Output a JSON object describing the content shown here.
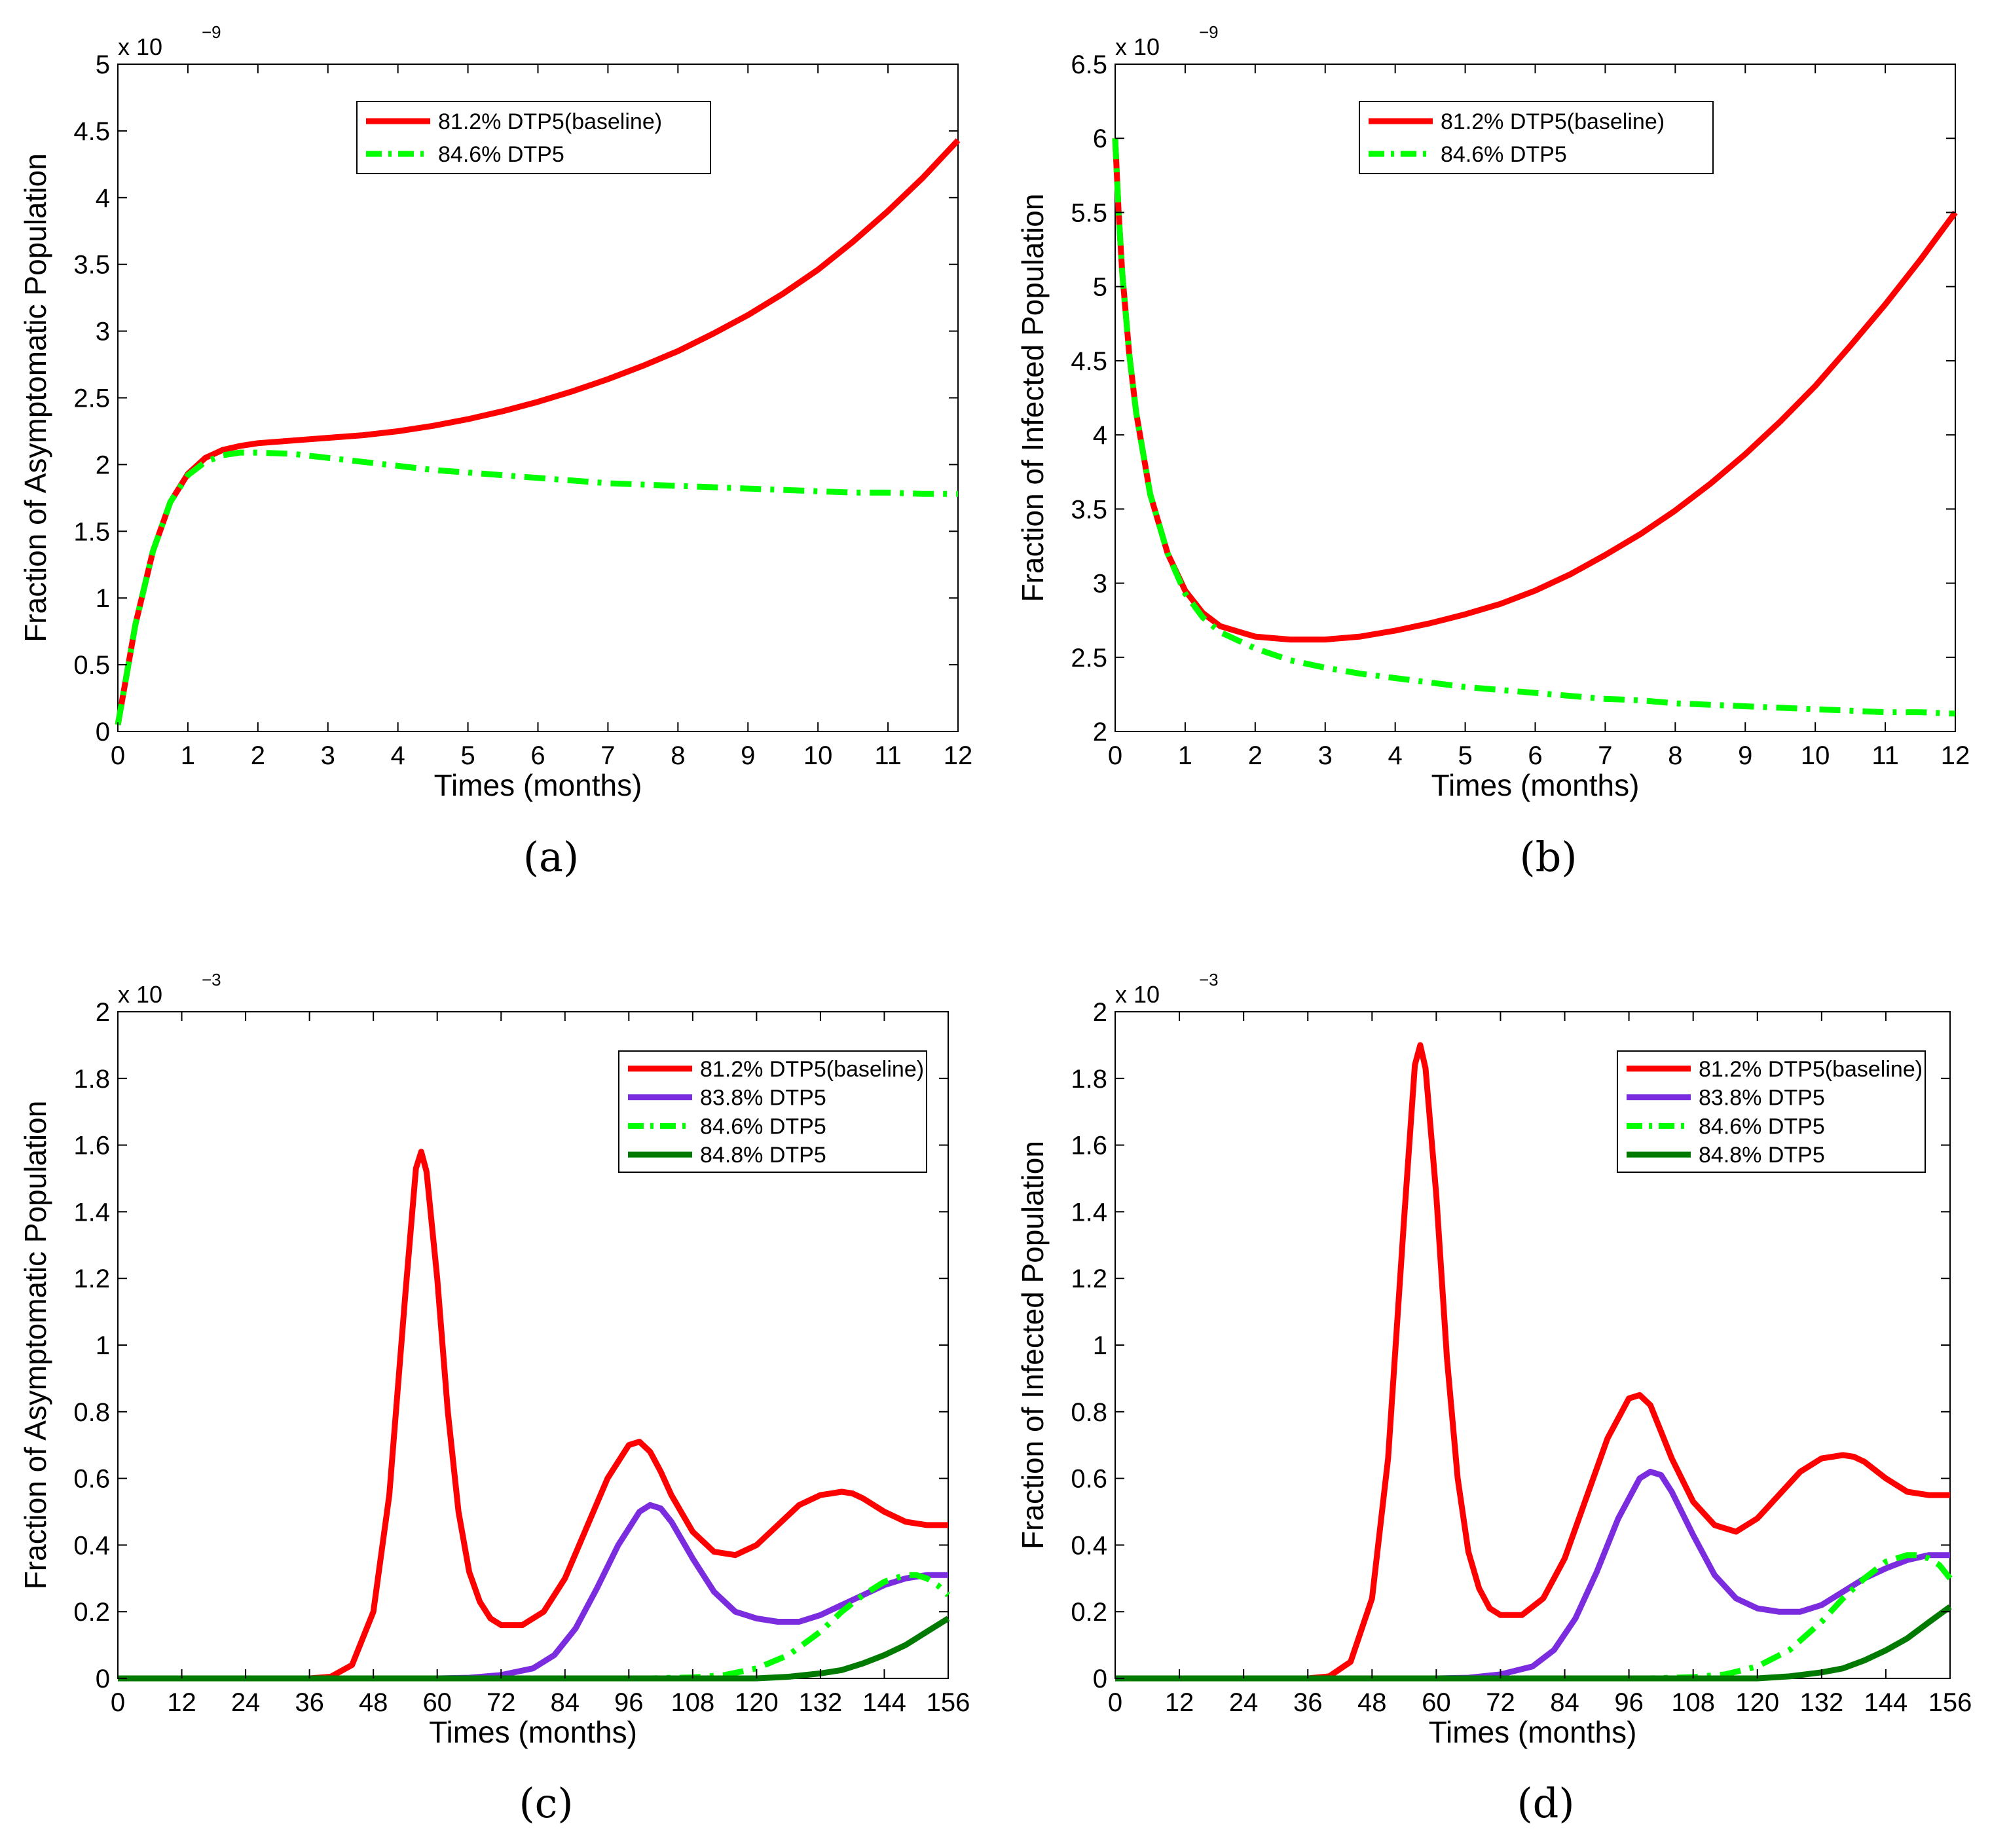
{
  "chart_data": [
    {
      "id": "a",
      "type": "line",
      "caption": "(a)",
      "xlabel": "Times (months)",
      "ylabel": "Fraction of Asymptomatic Population",
      "y_multiplier": "x 10",
      "y_exponent": "−9",
      "xlim": [
        0,
        12
      ],
      "ylim": [
        0,
        5
      ],
      "xticks": [
        0,
        1,
        2,
        3,
        4,
        5,
        6,
        7,
        8,
        9,
        10,
        11,
        12
      ],
      "xtick_labels": [
        "0",
        "1",
        "2",
        "3",
        "4",
        "5",
        "6",
        "7",
        "8",
        "9",
        "10",
        "11",
        "12"
      ],
      "yticks": [
        0,
        0.5,
        1,
        1.5,
        2,
        2.5,
        3,
        3.5,
        4,
        4.5,
        5
      ],
      "ytick_labels": [
        "0",
        "0.5",
        "1",
        "1.5",
        "2",
        "2.5",
        "3",
        "3.5",
        "4",
        "4.5",
        "5"
      ],
      "legend": "top-center",
      "series": [
        {
          "name": "81.2% DTP5(baseline)",
          "color": "#ff0000",
          "style": "solid",
          "x": [
            0,
            0.1,
            0.25,
            0.5,
            0.75,
            1,
            1.25,
            1.5,
            1.75,
            2,
            2.5,
            3,
            3.5,
            4,
            4.5,
            5,
            5.5,
            6,
            6.5,
            7,
            7.5,
            8,
            8.5,
            9,
            9.5,
            10,
            10.5,
            11,
            11.5,
            12
          ],
          "y": [
            0.05,
            0.35,
            0.8,
            1.35,
            1.72,
            1.93,
            2.05,
            2.11,
            2.14,
            2.16,
            2.18,
            2.2,
            2.22,
            2.25,
            2.29,
            2.34,
            2.4,
            2.47,
            2.55,
            2.64,
            2.74,
            2.85,
            2.98,
            3.12,
            3.28,
            3.46,
            3.67,
            3.9,
            4.15,
            4.43
          ]
        },
        {
          "name": "84.6% DTP5",
          "color": "#00ff00",
          "style": "dashdot",
          "x": [
            0,
            0.1,
            0.25,
            0.5,
            0.75,
            1,
            1.25,
            1.5,
            1.75,
            2,
            2.5,
            3,
            3.5,
            4,
            4.5,
            5,
            5.5,
            6,
            6.5,
            7,
            7.5,
            8,
            8.5,
            9,
            9.5,
            10,
            10.5,
            11,
            11.5,
            12
          ],
          "y": [
            0.05,
            0.35,
            0.8,
            1.35,
            1.72,
            1.92,
            2.02,
            2.07,
            2.09,
            2.09,
            2.08,
            2.05,
            2.02,
            1.99,
            1.96,
            1.94,
            1.92,
            1.9,
            1.88,
            1.86,
            1.85,
            1.84,
            1.83,
            1.82,
            1.81,
            1.8,
            1.79,
            1.79,
            1.78,
            1.78
          ]
        }
      ]
    },
    {
      "id": "b",
      "type": "line",
      "caption": "(b)",
      "xlabel": "Times (months)",
      "ylabel": "Fraction of Infected Population",
      "y_multiplier": "x 10",
      "y_exponent": "−9",
      "xlim": [
        0,
        12
      ],
      "ylim": [
        2,
        6.5
      ],
      "xticks": [
        0,
        1,
        2,
        3,
        4,
        5,
        6,
        7,
        8,
        9,
        10,
        11,
        12
      ],
      "xtick_labels": [
        "0",
        "1",
        "2",
        "3",
        "4",
        "5",
        "6",
        "7",
        "8",
        "9",
        "10",
        "11",
        "12"
      ],
      "yticks": [
        2,
        2.5,
        3,
        3.5,
        4,
        4.5,
        5,
        5.5,
        6,
        6.5
      ],
      "ytick_labels": [
        "2",
        "2.5",
        "3",
        "3.5",
        "4",
        "4.5",
        "5",
        "5.5",
        "6",
        "6.5"
      ],
      "legend": "top-center",
      "series": [
        {
          "name": "81.2% DTP5(baseline)",
          "color": "#ff0000",
          "style": "solid",
          "x": [
            0,
            0.05,
            0.1,
            0.2,
            0.3,
            0.5,
            0.75,
            1,
            1.25,
            1.5,
            2,
            2.5,
            3,
            3.5,
            4,
            4.5,
            5,
            5.5,
            6,
            6.5,
            7,
            7.5,
            8,
            8.5,
            9,
            9.5,
            10,
            10.5,
            11,
            11.5,
            12
          ],
          "y": [
            6,
            5.5,
            5.1,
            4.55,
            4.15,
            3.6,
            3.2,
            2.95,
            2.8,
            2.71,
            2.64,
            2.62,
            2.62,
            2.64,
            2.68,
            2.73,
            2.79,
            2.86,
            2.95,
            3.06,
            3.19,
            3.33,
            3.49,
            3.67,
            3.87,
            4.09,
            4.33,
            4.6,
            4.88,
            5.18,
            5.5
          ]
        },
        {
          "name": "84.6% DTP5",
          "color": "#00ff00",
          "style": "dashdot",
          "x": [
            0,
            0.05,
            0.1,
            0.2,
            0.3,
            0.5,
            0.75,
            1,
            1.25,
            1.5,
            2,
            2.5,
            3,
            3.5,
            4,
            4.5,
            5,
            5.5,
            6,
            6.5,
            7,
            7.5,
            8,
            8.5,
            9,
            9.5,
            10,
            10.5,
            11,
            11.5,
            12
          ],
          "y": [
            6,
            5.5,
            5.1,
            4.55,
            4.15,
            3.6,
            3.2,
            2.93,
            2.77,
            2.67,
            2.56,
            2.48,
            2.43,
            2.39,
            2.36,
            2.33,
            2.3,
            2.28,
            2.26,
            2.24,
            2.22,
            2.21,
            2.19,
            2.18,
            2.17,
            2.16,
            2.15,
            2.14,
            2.13,
            2.13,
            2.12
          ]
        }
      ]
    },
    {
      "id": "c",
      "type": "line",
      "caption": "(c)",
      "xlabel": "Times (months)",
      "ylabel": "Fraction of Asymptomatic Population",
      "y_multiplier": "x 10",
      "y_exponent": "−3",
      "xlim": [
        0,
        156
      ],
      "ylim": [
        0,
        2
      ],
      "xticks": [
        0,
        12,
        24,
        36,
        48,
        60,
        72,
        84,
        96,
        108,
        120,
        132,
        144,
        156
      ],
      "xtick_labels": [
        "0",
        "12",
        "24",
        "36",
        "48",
        "60",
        "72",
        "84",
        "96",
        "108",
        "120",
        "132",
        "144",
        "156"
      ],
      "yticks": [
        0,
        0.2,
        0.4,
        0.6,
        0.8,
        1,
        1.2,
        1.4,
        1.6,
        1.8,
        2
      ],
      "ytick_labels": [
        "0",
        "0.2",
        "0.4",
        "0.6",
        "0.8",
        "1",
        "1.2",
        "1.4",
        "1.6",
        "1.8",
        "2"
      ],
      "legend": "top-right",
      "series": [
        {
          "name": "81.2% DTP5(baseline)",
          "color": "#ff0000",
          "style": "solid",
          "x": [
            0,
            36,
            40,
            44,
            48,
            51,
            54,
            56,
            57,
            58,
            60,
            62,
            64,
            66,
            68,
            70,
            72,
            76,
            80,
            84,
            88,
            92,
            96,
            98,
            100,
            102,
            104,
            108,
            112,
            116,
            120,
            124,
            128,
            132,
            136,
            138,
            140,
            144,
            148,
            152,
            156
          ],
          "y": [
            0,
            0,
            0.005,
            0.04,
            0.2,
            0.55,
            1.15,
            1.53,
            1.58,
            1.52,
            1.2,
            0.8,
            0.5,
            0.32,
            0.23,
            0.18,
            0.16,
            0.16,
            0.2,
            0.3,
            0.45,
            0.6,
            0.7,
            0.71,
            0.68,
            0.62,
            0.55,
            0.44,
            0.38,
            0.37,
            0.4,
            0.46,
            0.52,
            0.55,
            0.56,
            0.555,
            0.54,
            0.5,
            0.47,
            0.46,
            0.46
          ]
        },
        {
          "name": "83.8% DTP5",
          "color": "#7b2cde",
          "style": "solid",
          "x": [
            0,
            60,
            66,
            72,
            78,
            82,
            86,
            90,
            94,
            98,
            100,
            102,
            104,
            108,
            112,
            116,
            120,
            124,
            128,
            132,
            136,
            140,
            144,
            148,
            152,
            156
          ],
          "y": [
            0,
            0,
            0.002,
            0.01,
            0.03,
            0.07,
            0.15,
            0.27,
            0.4,
            0.5,
            0.52,
            0.51,
            0.47,
            0.36,
            0.26,
            0.2,
            0.18,
            0.17,
            0.17,
            0.19,
            0.22,
            0.25,
            0.28,
            0.3,
            0.31,
            0.31
          ]
        },
        {
          "name": "84.6% DTP5",
          "color": "#00ff00",
          "style": "dashdot",
          "x": [
            0,
            100,
            108,
            114,
            120,
            126,
            132,
            136,
            140,
            144,
            148,
            150,
            152,
            154,
            156
          ],
          "y": [
            0,
            0,
            0.003,
            0.01,
            0.03,
            0.07,
            0.14,
            0.2,
            0.25,
            0.29,
            0.31,
            0.31,
            0.3,
            0.28,
            0.25
          ]
        },
        {
          "name": "84.8% DTP5",
          "color": "#007a00",
          "style": "solid",
          "x": [
            0,
            120,
            126,
            132,
            136,
            140,
            144,
            148,
            152,
            156
          ],
          "y": [
            0,
            0,
            0.005,
            0.015,
            0.025,
            0.045,
            0.07,
            0.1,
            0.14,
            0.18
          ]
        }
      ]
    },
    {
      "id": "d",
      "type": "line",
      "caption": "(d)",
      "xlabel": "Times (months)",
      "ylabel": "Fraction of Infected Population",
      "y_multiplier": "x 10",
      "y_exponent": "−3",
      "xlim": [
        0,
        156
      ],
      "ylim": [
        0,
        2
      ],
      "xticks": [
        0,
        12,
        24,
        36,
        48,
        60,
        72,
        84,
        96,
        108,
        120,
        132,
        144,
        156
      ],
      "xtick_labels": [
        "0",
        "12",
        "24",
        "36",
        "48",
        "60",
        "72",
        "84",
        "96",
        "108",
        "120",
        "132",
        "144",
        "156"
      ],
      "yticks": [
        0,
        0.2,
        0.4,
        0.6,
        0.8,
        1,
        1.2,
        1.4,
        1.6,
        1.8,
        2
      ],
      "ytick_labels": [
        "0",
        "0.2",
        "0.4",
        "0.6",
        "0.8",
        "1",
        "1.2",
        "1.4",
        "1.6",
        "1.8",
        "2"
      ],
      "legend": "top-right",
      "series": [
        {
          "name": "81.2% DTP5(baseline)",
          "color": "#ff0000",
          "style": "solid",
          "x": [
            0,
            36,
            40,
            44,
            48,
            51,
            54,
            56,
            57,
            58,
            60,
            62,
            64,
            66,
            68,
            70,
            72,
            76,
            80,
            84,
            88,
            92,
            96,
            98,
            100,
            102,
            104,
            108,
            112,
            116,
            120,
            124,
            128,
            132,
            136,
            138,
            140,
            144,
            148,
            152,
            156
          ],
          "y": [
            0,
            0,
            0.006,
            0.05,
            0.24,
            0.66,
            1.38,
            1.84,
            1.9,
            1.83,
            1.45,
            0.96,
            0.6,
            0.38,
            0.27,
            0.21,
            0.19,
            0.19,
            0.24,
            0.36,
            0.54,
            0.72,
            0.84,
            0.85,
            0.82,
            0.74,
            0.66,
            0.53,
            0.46,
            0.44,
            0.48,
            0.55,
            0.62,
            0.66,
            0.67,
            0.665,
            0.65,
            0.6,
            0.56,
            0.55,
            0.55
          ]
        },
        {
          "name": "83.8% DTP5",
          "color": "#7b2cde",
          "style": "solid",
          "x": [
            0,
            60,
            66,
            72,
            78,
            82,
            86,
            90,
            94,
            98,
            100,
            102,
            104,
            108,
            112,
            116,
            120,
            124,
            128,
            132,
            136,
            140,
            144,
            148,
            152,
            156
          ],
          "y": [
            0,
            0,
            0.002,
            0.012,
            0.036,
            0.085,
            0.18,
            0.32,
            0.48,
            0.6,
            0.62,
            0.61,
            0.56,
            0.43,
            0.31,
            0.24,
            0.21,
            0.2,
            0.2,
            0.22,
            0.26,
            0.3,
            0.33,
            0.355,
            0.37,
            0.37
          ]
        },
        {
          "name": "84.6% DTP5",
          "color": "#00ff00",
          "style": "dashdot",
          "x": [
            0,
            100,
            108,
            114,
            120,
            126,
            132,
            136,
            140,
            144,
            148,
            150,
            152,
            154,
            156
          ],
          "y": [
            0,
            0,
            0.004,
            0.012,
            0.036,
            0.085,
            0.17,
            0.24,
            0.3,
            0.35,
            0.37,
            0.37,
            0.36,
            0.34,
            0.3
          ]
        },
        {
          "name": "84.8% DTP5",
          "color": "#007a00",
          "style": "solid",
          "x": [
            0,
            120,
            126,
            132,
            136,
            140,
            144,
            148,
            152,
            156
          ],
          "y": [
            0,
            0,
            0.006,
            0.018,
            0.03,
            0.054,
            0.084,
            0.12,
            0.168,
            0.215
          ]
        }
      ]
    }
  ]
}
